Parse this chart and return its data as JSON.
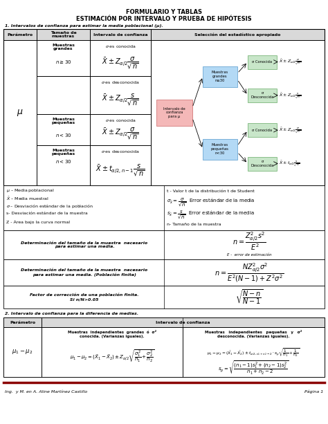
{
  "title1": "FORMULARIO Y TABLAS",
  "title2": "ESTIMACIÓN POR INTERVALO Y PRUEBA DE HIPÓTESIS",
  "section1_title": "1. Intervalos de confianza para estimar la media poblacional (μ).",
  "section2_title": "2. Intervalo de confianza para la diferencia de medias.",
  "header_bg": "#d9d9d9",
  "green_box": "#c8e6c9",
  "blue_box": "#b3d9f5",
  "pink_box": "#f4b8b8",
  "footer_left": "Ing.  y M. en A. Aline Martínez Castillo",
  "footer_right": "Página 1"
}
